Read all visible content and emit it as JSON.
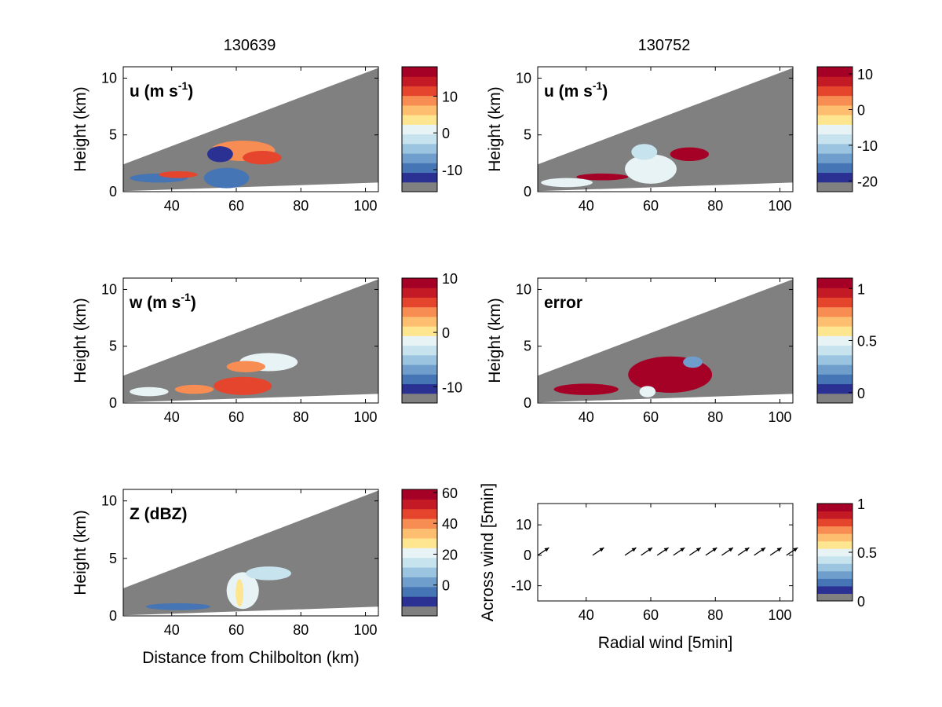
{
  "column_titles": [
    "130639",
    "130752"
  ],
  "colors": {
    "background": "#ffffff",
    "mask_gray": "#808080",
    "axis": "#000000",
    "colormap": [
      "#808080",
      "#2b3192",
      "#4575b4",
      "#6f9ecc",
      "#9ac4df",
      "#c7e3ee",
      "#e8f3f5",
      "#fee590",
      "#fdbf6f",
      "#f78d52",
      "#e5452d",
      "#c41a26",
      "#a50026"
    ]
  },
  "chart_data": [
    {
      "id": "u1",
      "type": "heatmap",
      "column": "130639",
      "inset_label": "u (m s",
      "inset_sup": "-1",
      "inset_close": ")",
      "ylabel": "Height (km)",
      "xlabel": "",
      "xlim": [
        25,
        104
      ],
      "ylim": [
        0,
        11
      ],
      "xticks": [
        "40",
        "60",
        "80",
        "100"
      ],
      "yticks": [
        "0",
        "5",
        "10"
      ],
      "colorbar": {
        "ticks": [
          "10",
          "0",
          "-10"
        ],
        "tick_values": [
          10,
          0,
          -10
        ],
        "range": [
          -16,
          18
        ]
      },
      "features": [
        {
          "x": 62,
          "y": 3.6,
          "rx": 10,
          "ry": 0.9,
          "value": 8
        },
        {
          "x": 68,
          "y": 3.0,
          "rx": 6,
          "ry": 0.6,
          "value": 12
        },
        {
          "x": 57,
          "y": 1.2,
          "rx": 7,
          "ry": 0.9,
          "value": -12
        },
        {
          "x": 55,
          "y": 3.3,
          "rx": 4,
          "ry": 0.7,
          "value": -14
        },
        {
          "x": 36,
          "y": 1.2,
          "rx": 9,
          "ry": 0.4,
          "value": -12
        },
        {
          "x": 42,
          "y": 1.5,
          "rx": 6,
          "ry": 0.3,
          "value": 10
        }
      ]
    },
    {
      "id": "u2",
      "type": "heatmap",
      "column": "130752",
      "inset_label": "u (m s",
      "inset_sup": "-1",
      "inset_close": ")",
      "ylabel": "Height (km)",
      "xlabel": "",
      "xlim": [
        25,
        104
      ],
      "ylim": [
        0,
        11
      ],
      "xticks": [
        "40",
        "60",
        "80",
        "100"
      ],
      "yticks": [
        "0",
        "5",
        "10"
      ],
      "colorbar": {
        "ticks": [
          "10",
          "0",
          "-10",
          "-20"
        ],
        "tick_values": [
          10,
          0,
          -10,
          -20
        ],
        "range": [
          -23,
          12
        ]
      },
      "features": [
        {
          "x": 60,
          "y": 2.0,
          "rx": 8,
          "ry": 1.3,
          "value": -7
        },
        {
          "x": 58,
          "y": 3.5,
          "rx": 4,
          "ry": 0.7,
          "value": -9
        },
        {
          "x": 72,
          "y": 3.3,
          "rx": 6,
          "ry": 0.6,
          "value": 10
        },
        {
          "x": 45,
          "y": 1.3,
          "rx": 8,
          "ry": 0.3,
          "value": 10
        },
        {
          "x": 34,
          "y": 0.8,
          "rx": 8,
          "ry": 0.4,
          "value": -6
        }
      ]
    },
    {
      "id": "w",
      "type": "heatmap",
      "column": "130639",
      "inset_label": "w (m s",
      "inset_sup": "-1",
      "inset_close": ")",
      "ylabel": "Height (km)",
      "xlabel": "",
      "xlim": [
        25,
        104
      ],
      "ylim": [
        0,
        11
      ],
      "xticks": [
        "40",
        "60",
        "80",
        "100"
      ],
      "yticks": [
        "0",
        "5",
        "10"
      ],
      "colorbar": {
        "ticks": [
          "10",
          "0",
          "-10"
        ],
        "tick_values": [
          10,
          0,
          -10
        ],
        "range": [
          -13,
          10
        ]
      },
      "features": [
        {
          "x": 70,
          "y": 3.6,
          "rx": 9,
          "ry": 0.8,
          "value": -3
        },
        {
          "x": 63,
          "y": 3.2,
          "rx": 6,
          "ry": 0.5,
          "value": 4
        },
        {
          "x": 62,
          "y": 1.5,
          "rx": 9,
          "ry": 0.8,
          "value": 5
        },
        {
          "x": 47,
          "y": 1.2,
          "rx": 6,
          "ry": 0.4,
          "value": 3
        },
        {
          "x": 33,
          "y": 1.0,
          "rx": 6,
          "ry": 0.4,
          "value": -2
        }
      ]
    },
    {
      "id": "err",
      "type": "heatmap",
      "column": "130752",
      "inset_label": "error",
      "inset_sup": "",
      "inset_close": "",
      "ylabel": "Height (km)",
      "xlabel": "",
      "xlim": [
        25,
        104
      ],
      "ylim": [
        0,
        11
      ],
      "xticks": [
        "40",
        "60",
        "80",
        "100"
      ],
      "yticks": [
        "0",
        "5",
        "10"
      ],
      "colorbar": {
        "ticks": [
          "1",
          "0.5",
          "0"
        ],
        "tick_values": [
          1,
          0.5,
          0
        ],
        "range": [
          -0.1,
          1.1
        ]
      },
      "features": [
        {
          "x": 66,
          "y": 2.5,
          "rx": 13,
          "ry": 1.6,
          "value": 1.05
        },
        {
          "x": 73,
          "y": 3.6,
          "rx": 3,
          "ry": 0.5,
          "value": 0.15
        },
        {
          "x": 59,
          "y": 1.0,
          "rx": 2.5,
          "ry": 0.5,
          "value": 0.4
        },
        {
          "x": 40,
          "y": 1.2,
          "rx": 10,
          "ry": 0.5,
          "value": 1.05
        }
      ]
    },
    {
      "id": "z",
      "type": "heatmap",
      "column": "130639",
      "inset_label": "Z (dBZ)",
      "inset_sup": "",
      "inset_close": "",
      "ylabel": "Height (km)",
      "xlabel": "Distance from Chilbolton (km)",
      "xlim": [
        25,
        104
      ],
      "ylim": [
        0,
        11
      ],
      "xticks": [
        "40",
        "60",
        "80",
        "100"
      ],
      "yticks": [
        "0",
        "5",
        "10"
      ],
      "colorbar": {
        "ticks": [
          "60",
          "40",
          "20",
          "0"
        ],
        "tick_values": [
          60,
          40,
          20,
          0
        ],
        "range": [
          -20,
          62
        ]
      },
      "features": [
        {
          "x": 62,
          "y": 2.2,
          "rx": 5,
          "ry": 1.6,
          "value": 15
        },
        {
          "x": 70,
          "y": 3.7,
          "rx": 7,
          "ry": 0.6,
          "value": 12
        },
        {
          "x": 61,
          "y": 2.0,
          "rx": 1.2,
          "ry": 1.2,
          "value": 25
        },
        {
          "x": 42,
          "y": 0.8,
          "rx": 10,
          "ry": 0.3,
          "value": -10
        }
      ]
    },
    {
      "id": "wind",
      "type": "scatter",
      "column": "130752",
      "inset_label": "",
      "inset_sup": "",
      "inset_close": "",
      "ylabel": "Across wind [5min]",
      "xlabel": "Radial wind [5min]",
      "xlim": [
        25,
        104
      ],
      "ylim": [
        -15,
        17
      ],
      "xticks": [
        "40",
        "60",
        "80",
        "100"
      ],
      "yticks": [
        "-10",
        "0",
        "10"
      ],
      "colorbar": {
        "ticks": [
          "1",
          "0.5",
          "0"
        ],
        "tick_values": [
          1,
          0.5,
          0
        ],
        "range": [
          0,
          1
        ]
      },
      "arrows": {
        "x": [
          25,
          42,
          52,
          57,
          62,
          67,
          72,
          77,
          82,
          87,
          92,
          97,
          102
        ],
        "y": 0,
        "u": 3.5,
        "v": 2.5
      }
    }
  ]
}
